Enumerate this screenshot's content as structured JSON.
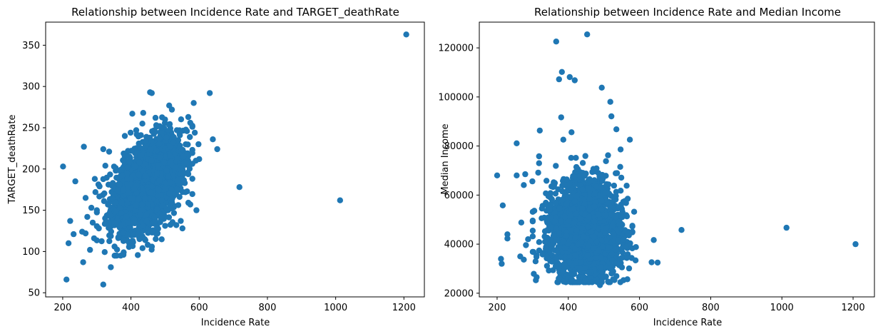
{
  "colors": {
    "marker": "#1f77b4",
    "axis": "#000000",
    "background": "#ffffff"
  },
  "chart_data": [
    {
      "type": "scatter",
      "title": "Relationship between Incidence Rate and TARGET_deathRate",
      "xlabel": "Incidence Rate",
      "ylabel": "TARGET_deathRate",
      "xlim": [
        150,
        1260
      ],
      "ylim": [
        45,
        378
      ],
      "xticks": [
        200,
        400,
        600,
        800,
        1000,
        1200
      ],
      "yticks": [
        50,
        100,
        150,
        200,
        250,
        300,
        350
      ],
      "xtick_labels": [
        "200",
        "400",
        "600",
        "800",
        "1000",
        "1200"
      ],
      "ytick_labels": [
        "50",
        "100",
        "150",
        "200",
        "250",
        "300",
        "350"
      ],
      "grid": false,
      "points": [
        [
          1207,
          363
        ],
        [
          1013,
          162
        ],
        [
          718,
          178
        ],
        [
          631,
          292
        ],
        [
          640,
          236
        ],
        [
          653,
          224
        ],
        [
          584,
          280
        ],
        [
          456,
          293
        ],
        [
          461,
          292
        ],
        [
          201,
          203
        ],
        [
          211,
          66
        ],
        [
          319,
          60
        ],
        [
          341,
          81
        ],
        [
          217,
          110
        ],
        [
          222,
          137
        ],
        [
          232,
          121
        ],
        [
          237,
          185
        ],
        [
          262,
          227
        ],
        [
          260,
          87
        ],
        [
          257,
          124
        ],
        [
          267,
          122
        ],
        [
          280,
          102
        ],
        [
          272,
          142
        ],
        [
          294,
          188
        ],
        [
          308,
          179
        ],
        [
          319,
          224
        ],
        [
          336,
          221
        ],
        [
          352,
          106
        ],
        [
          370,
          95
        ],
        [
          378,
          96
        ],
        [
          405,
          113
        ],
        [
          420,
          121
        ],
        [
          500,
          260
        ],
        [
          512,
          277
        ],
        [
          520,
          272
        ],
        [
          568,
          263
        ],
        [
          574,
          256
        ],
        [
          587,
          244
        ],
        [
          566,
          219
        ],
        [
          592,
          150
        ],
        [
          574,
          157
        ],
        [
          551,
          128
        ],
        [
          533,
          132
        ],
        [
          546,
          137
        ],
        [
          600,
          212
        ],
        [
          590,
          210
        ],
        [
          598,
          230
        ],
        [
          484,
          252
        ],
        [
          472,
          262
        ],
        [
          436,
          268
        ],
        [
          429,
          241
        ],
        [
          399,
          244
        ],
        [
          382,
          240
        ],
        [
          404,
          267
        ],
        [
          300,
          150
        ],
        [
          284,
          153
        ],
        [
          288,
          135
        ],
        [
          306,
          128
        ],
        [
          292,
          116
        ],
        [
          296,
          172
        ],
        [
          267,
          165
        ],
        [
          325,
          204
        ],
        [
          347,
          183
        ]
      ],
      "dense_cluster": {
        "count": 2600,
        "x_mean": 448,
        "x_sd": 48,
        "y_mean": 180,
        "y_sd": 27,
        "correlation": 0.45
      }
    },
    {
      "type": "scatter",
      "title": "Relationship between Incidence Rate and Median Income",
      "xlabel": "Incidence Rate",
      "ylabel": "Median Income",
      "xlim": [
        150,
        1260
      ],
      "ylim": [
        18500,
        130500
      ],
      "xticks": [
        200,
        400,
        600,
        800,
        1000,
        1200
      ],
      "yticks": [
        20000,
        40000,
        60000,
        80000,
        100000,
        120000
      ],
      "xtick_labels": [
        "200",
        "400",
        "600",
        "800",
        "1000",
        "1200"
      ],
      "ytick_labels": [
        "20000",
        "40000",
        "60000",
        "80000",
        "100000",
        "120000"
      ],
      "grid": false,
      "points": [
        [
          1207,
          40000
        ],
        [
          1013,
          46700
        ],
        [
          718,
          45800
        ],
        [
          651,
          32500
        ],
        [
          640,
          41700
        ],
        [
          634,
          32600
        ],
        [
          453,
          125500
        ],
        [
          366,
          122600
        ],
        [
          382,
          110200
        ],
        [
          374,
          107200
        ],
        [
          404,
          108100
        ],
        [
          418,
          106800
        ],
        [
          494,
          103800
        ],
        [
          200,
          68000
        ],
        [
          211,
          34000
        ],
        [
          213,
          32000
        ],
        [
          216,
          55800
        ],
        [
          229,
          42300
        ],
        [
          229,
          44000
        ],
        [
          255,
          81100
        ],
        [
          255,
          68000
        ],
        [
          268,
          48800
        ],
        [
          275,
          64100
        ],
        [
          279,
          68500
        ],
        [
          299,
          65600
        ],
        [
          318,
          75800
        ],
        [
          320,
          86300
        ],
        [
          318,
          73000
        ],
        [
          350,
          60800
        ],
        [
          365,
          71900
        ],
        [
          380,
          91700
        ],
        [
          386,
          82600
        ],
        [
          409,
          85600
        ],
        [
          518,
          98000
        ],
        [
          521,
          92100
        ],
        [
          535,
          86800
        ],
        [
          547,
          78600
        ],
        [
          573,
          82600
        ],
        [
          567,
          58500
        ],
        [
          585,
          53200
        ],
        [
          580,
          47500
        ],
        [
          590,
          38800
        ],
        [
          589,
          33400
        ],
        [
          566,
          25700
        ],
        [
          555,
          25300
        ],
        [
          373,
          26000
        ],
        [
          386,
          29000
        ],
        [
          410,
          25600
        ],
        [
          489,
          23300
        ],
        [
          494,
          24500
        ],
        [
          281,
          39600
        ],
        [
          287,
          42000
        ],
        [
          300,
          45500
        ],
        [
          302,
          36800
        ],
        [
          308,
          33000
        ],
        [
          303,
          27900
        ],
        [
          265,
          35000
        ],
        [
          275,
          33700
        ],
        [
          354,
          58300
        ],
        [
          360,
          63800
        ],
        [
          533,
          68900
        ],
        [
          546,
          71500
        ],
        [
          549,
          67100
        ]
      ],
      "dense_cluster": {
        "count": 2600,
        "x_mean": 448,
        "x_sd": 48,
        "y_mean": 45500,
        "y_sd": 9500,
        "correlation": 0.0
      }
    }
  ]
}
